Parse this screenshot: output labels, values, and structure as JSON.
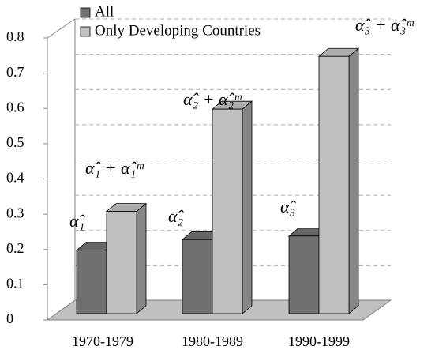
{
  "chart_data": {
    "type": "bar3d",
    "categories": [
      "1970-1979",
      "1980-1989",
      "1990-1999"
    ],
    "series": [
      {
        "name": "All",
        "color": "#707070",
        "values": [
          0.18,
          0.21,
          0.22
        ]
      },
      {
        "name": "Only Developing Countries",
        "color": "#c0c0c0",
        "values": [
          0.29,
          0.58,
          0.73
        ]
      }
    ],
    "ylim": [
      0,
      0.8
    ],
    "yticks": [
      {
        "value": 0,
        "label": "0"
      },
      {
        "value": 0.1,
        "label": "0.1"
      },
      {
        "value": 0.2,
        "label": "0.2"
      },
      {
        "value": 0.3,
        "label": "0.3"
      },
      {
        "value": 0.4,
        "label": "0.4"
      },
      {
        "value": 0.5,
        "label": "0.5"
      },
      {
        "value": 0.6,
        "label": "0.6"
      },
      {
        "value": 0.7,
        "label": "0.7"
      },
      {
        "value": 0.8,
        "label": "0.8"
      }
    ],
    "grid": true,
    "legend": "top-left",
    "annotations": [
      "α̂₁ + α̂₁ᵐ",
      "α̂₁",
      "α̂₂ + α̂₂ᵐ",
      "α̂₂",
      "α̂₃",
      "α̂₃ + α̂₃ᵐ"
    ]
  }
}
